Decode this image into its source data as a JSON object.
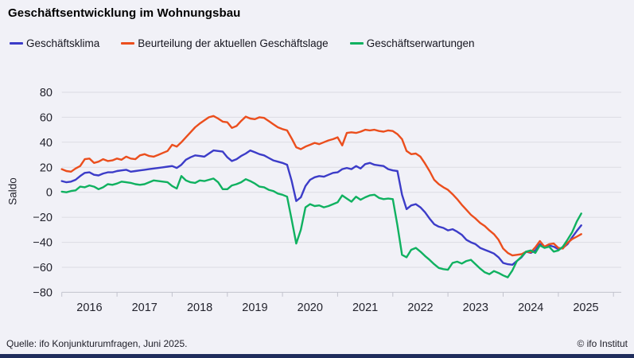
{
  "title": "Geschäftsentwicklung im Wohnungsbau",
  "footer": {
    "source": "Quelle: ifo Konjunkturumfragen, Juni 2025.",
    "copyright": "© ifo Institut"
  },
  "colors": {
    "background": "#f1f1f7",
    "grid": "#dcdce3",
    "axis": "#c2c3cd",
    "text": "#23232d",
    "bottom_bar": "#1f2d5c"
  },
  "chart_data": {
    "type": "line",
    "title": "Geschäftsentwicklung im Wohnungsbau",
    "xlabel": "",
    "ylabel": "Saldo",
    "ylim": [
      -80,
      80
    ],
    "yticks": [
      80,
      60,
      40,
      20,
      0,
      -20,
      -40,
      -60,
      -80
    ],
    "ytick_labels": [
      "80",
      "60",
      "40",
      "20",
      "0",
      "−20",
      "−40",
      "−60",
      "−80"
    ],
    "xtick_years": [
      "2016",
      "2017",
      "2018",
      "2019",
      "2020",
      "2021",
      "2022",
      "2023",
      "2024",
      "2025"
    ],
    "x_start": "2016-01",
    "x_end": "2025-06",
    "frequency": "monthly",
    "grid": true,
    "legend_position": "top",
    "series": [
      {
        "name": "Geschäftsklima",
        "color": "#3c3cc8",
        "values": [
          9,
          8,
          8.5,
          10,
          13,
          15.5,
          16,
          14,
          13.5,
          15,
          16,
          16,
          17,
          17.5,
          18,
          16.5,
          17,
          17.5,
          18,
          18.5,
          19,
          19.5,
          20,
          20.5,
          21,
          19.5,
          22,
          26,
          28,
          29.5,
          29,
          28.5,
          31,
          33.5,
          33,
          32.5,
          28,
          25,
          26.5,
          29,
          31,
          33.5,
          32,
          30.5,
          29.5,
          27.5,
          25.5,
          24.5,
          23.5,
          22,
          9,
          -7,
          -4,
          5,
          10,
          12,
          13,
          12.5,
          14,
          15.5,
          16,
          18.5,
          19.5,
          18.5,
          21,
          19,
          22.5,
          23.5,
          22,
          21.5,
          21,
          18.5,
          17.5,
          17,
          -2,
          -13.5,
          -10.5,
          -9.5,
          -12,
          -16,
          -21,
          -25.5,
          -27.5,
          -28.5,
          -30.5,
          -29.5,
          -31.5,
          -34,
          -38,
          -40,
          -41.5,
          -44.5,
          -46,
          -47.5,
          -49,
          -52,
          -56.5,
          -57.5,
          -58,
          -55,
          -52,
          -47.5,
          -48.5,
          -46.5,
          -41.5,
          -43.5,
          -42.5,
          -43.5,
          -45.5,
          -44.5,
          -41.5,
          -36,
          -31,
          -26.5
        ]
      },
      {
        "name": "Beurteilung der aktuellen Geschäftslage",
        "color": "#eb4e1d",
        "values": [
          18.5,
          17,
          16.5,
          19,
          21,
          26.5,
          27,
          23.5,
          24.5,
          26.5,
          25,
          25.5,
          27,
          26,
          28.5,
          27,
          26.5,
          29.5,
          30.5,
          29,
          28.5,
          30,
          31.5,
          33,
          38,
          36.5,
          40,
          44,
          48,
          52,
          55,
          57.5,
          60,
          61,
          59,
          56.5,
          56,
          51.5,
          53,
          57,
          60.5,
          59,
          58.5,
          60,
          59.5,
          57,
          54.5,
          52,
          50.5,
          49.5,
          43,
          36,
          34.5,
          36.5,
          38,
          39.5,
          38.5,
          40,
          41.5,
          42.5,
          44,
          37.5,
          47.5,
          48,
          47.5,
          48.5,
          50,
          49.5,
          50,
          49,
          48.5,
          49.5,
          49,
          46.5,
          42.5,
          33,
          30.5,
          31,
          28.5,
          23,
          17,
          10,
          6.5,
          4,
          2,
          -1.5,
          -5.5,
          -10,
          -14,
          -18,
          -21,
          -24.5,
          -27,
          -30.5,
          -33.5,
          -38,
          -45,
          -48.5,
          -50.5,
          -50,
          -49.5,
          -47.5,
          -48,
          -44,
          -39,
          -43.5,
          -41.5,
          -41,
          -44.5,
          -45,
          -40.5,
          -37.5,
          -35.5,
          -33.5
        ]
      },
      {
        "name": "Geschäftserwartungen",
        "color": "#10b160",
        "values": [
          0.5,
          0,
          1,
          1.5,
          4.5,
          4,
          5.5,
          4.5,
          2.5,
          4,
          6.5,
          6,
          7,
          8.5,
          8,
          7.5,
          6.5,
          6,
          6.5,
          8,
          9.5,
          9,
          8.5,
          8,
          5,
          3,
          13,
          9.5,
          8,
          7.5,
          9.5,
          9,
          10,
          11,
          8,
          2.5,
          2.5,
          5.5,
          6.5,
          8,
          10.5,
          9,
          7,
          4.5,
          4,
          2,
          1,
          -1,
          -2,
          -3.5,
          -22,
          -41,
          -30,
          -12,
          -9.5,
          -11,
          -10.5,
          -12,
          -11,
          -9.5,
          -8,
          -2.5,
          -5,
          -7.5,
          -3.5,
          -6,
          -4,
          -2.5,
          -2,
          -4.5,
          -5.5,
          -5,
          -5.5,
          -26.5,
          -50,
          -52,
          -46,
          -44.5,
          -47.5,
          -51,
          -54,
          -57.5,
          -60.5,
          -61.5,
          -62,
          -56.5,
          -55.5,
          -57,
          -55,
          -54,
          -57.5,
          -61,
          -64,
          -65.5,
          -63,
          -64.5,
          -66.5,
          -68,
          -62.5,
          -55,
          -51.5,
          -47.5,
          -46.5,
          -48.5,
          -42.5,
          -44.5,
          -43.5,
          -47.5,
          -46.5,
          -43.5,
          -38,
          -32,
          -23.5,
          -17
        ]
      }
    ]
  }
}
